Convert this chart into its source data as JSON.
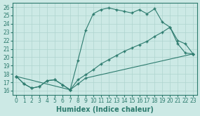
{
  "xlabel": "Humidex (Indice chaleur)",
  "xlim": [
    -0.5,
    23.5
  ],
  "ylim": [
    15.5,
    26.5
  ],
  "xticks": [
    0,
    1,
    2,
    3,
    4,
    5,
    6,
    7,
    8,
    9,
    10,
    11,
    12,
    13,
    14,
    15,
    16,
    17,
    18,
    19,
    20,
    21,
    22,
    23
  ],
  "yticks": [
    16,
    17,
    18,
    19,
    20,
    21,
    22,
    23,
    24,
    25,
    26
  ],
  "line_color": "#2d7b6e",
  "bg_color": "#cce9e5",
  "grid_color": "#afd4cf",
  "line1_x": [
    0,
    1,
    2,
    3,
    4,
    5,
    6,
    7,
    8,
    9,
    10,
    11,
    12,
    13,
    14,
    15,
    16,
    17,
    18,
    19,
    20,
    21,
    22,
    23
  ],
  "line1_y": [
    17.7,
    16.8,
    16.3,
    16.5,
    17.2,
    17.3,
    16.7,
    16.1,
    19.6,
    23.2,
    25.2,
    25.7,
    25.9,
    25.7,
    25.5,
    25.3,
    25.7,
    25.2,
    25.8,
    24.2,
    23.6,
    21.6,
    20.5,
    20.4
  ],
  "line2_x": [
    0,
    1,
    2,
    3,
    4,
    5,
    6,
    7,
    8,
    9,
    10,
    11,
    12,
    13,
    14,
    15,
    16,
    17,
    18,
    19,
    20,
    21,
    22,
    23
  ],
  "line2_y": [
    17.7,
    16.8,
    16.3,
    16.5,
    17.2,
    17.3,
    16.7,
    16.1,
    17.3,
    17.9,
    18.5,
    19.2,
    19.7,
    20.2,
    20.7,
    21.1,
    21.5,
    21.9,
    22.5,
    23.0,
    23.6,
    22.0,
    21.6,
    20.4
  ],
  "line3_x": [
    0,
    7,
    8,
    9,
    23
  ],
  "line3_y": [
    17.7,
    16.1,
    16.8,
    17.5,
    20.4
  ],
  "marker": "+",
  "markersize": 3.5,
  "linewidth": 0.8,
  "tick_fontsize": 5.5,
  "xlabel_fontsize": 7
}
